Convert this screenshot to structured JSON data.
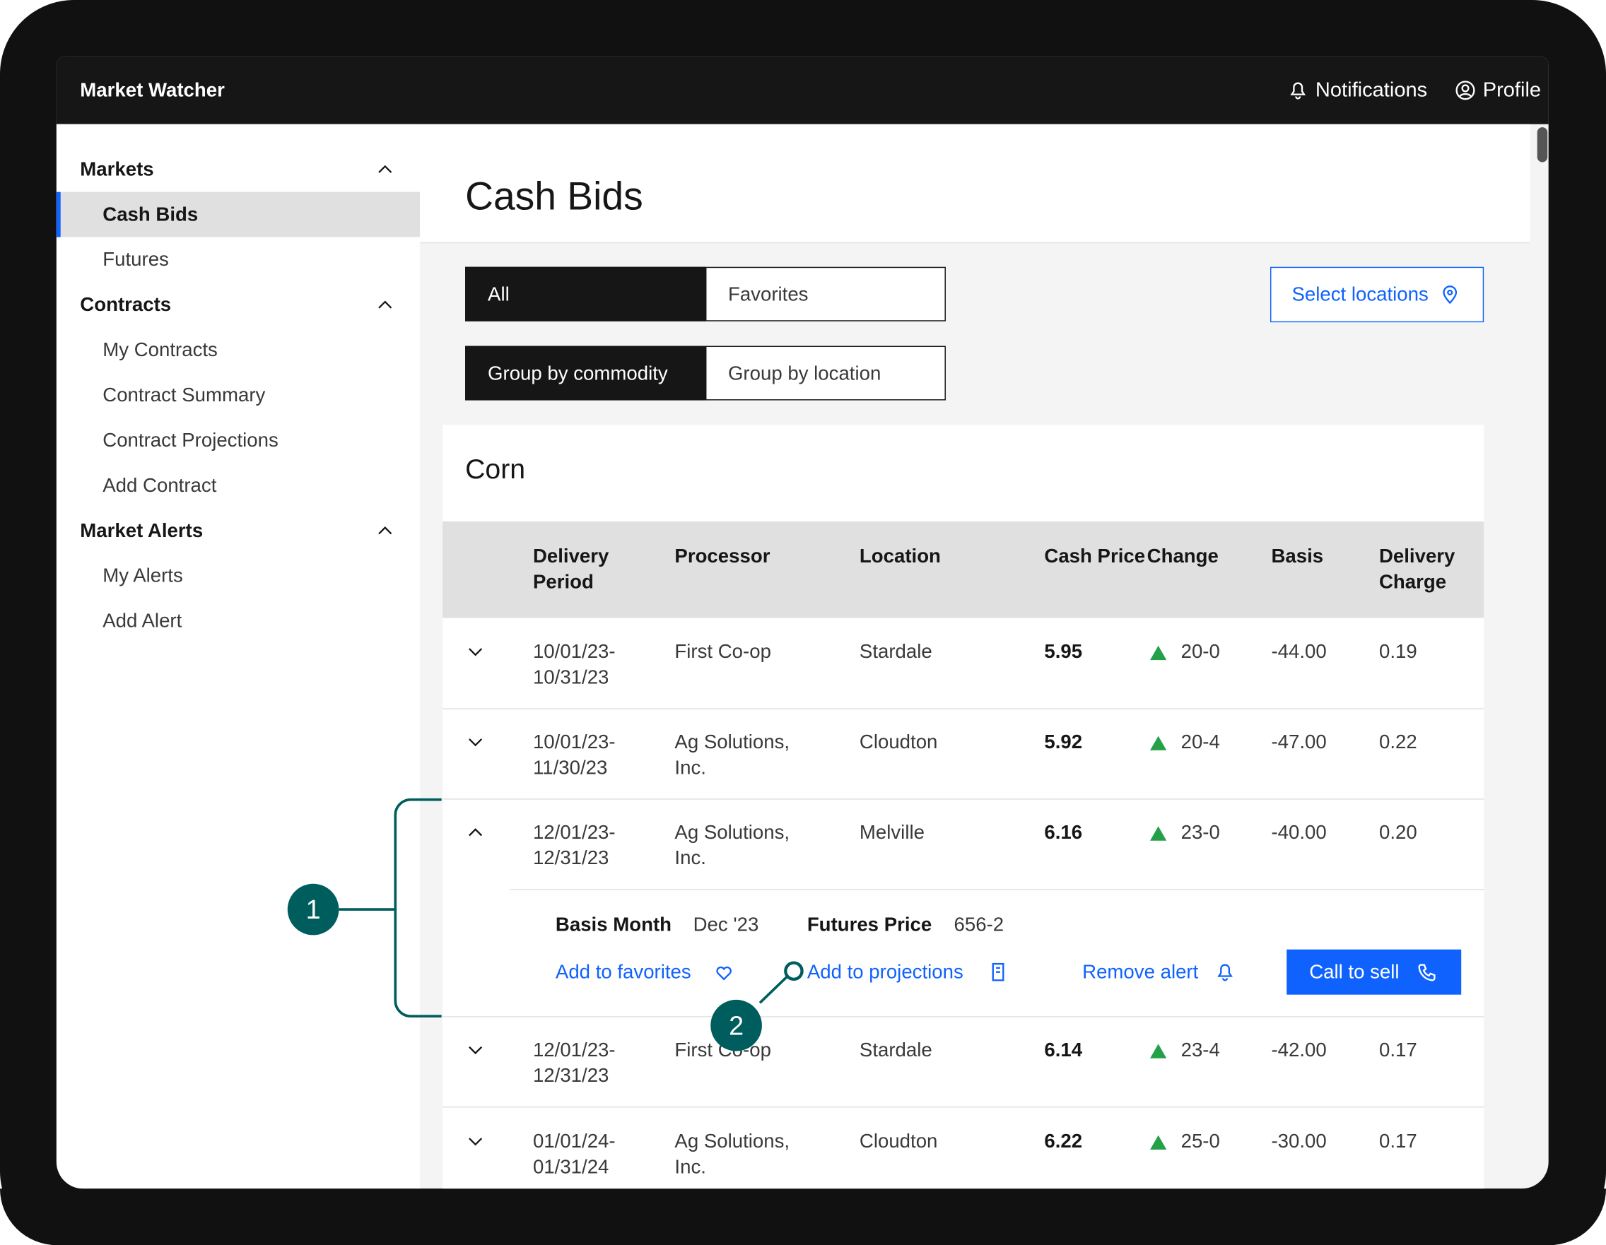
{
  "header": {
    "title": "Market Watcher",
    "notifications": "Notifications",
    "profile": "Profile"
  },
  "sidebar": [
    {
      "title": "Markets",
      "items": [
        "Cash Bids",
        "Futures"
      ]
    },
    {
      "title": "Contracts",
      "items": [
        "My Contracts",
        "Contract Summary",
        "Contract Projections",
        "Add Contract"
      ]
    },
    {
      "title": "Market Alerts",
      "items": [
        "My Alerts",
        "Add Alert"
      ]
    }
  ],
  "page": {
    "title": "Cash Bids",
    "tabs": [
      "All",
      "Favorites"
    ],
    "groups": [
      "Group by commodity",
      "Group by location"
    ],
    "select_button": "Select locations"
  },
  "card": {
    "title": "Corn",
    "columns": [
      "Delivery Period",
      "Processor",
      "Location",
      "Cash Price",
      "Change",
      "Basis",
      "Delivery Charge"
    ],
    "rows": [
      [
        "10/01/23-10/31/23",
        "First Co-op",
        "Stardale",
        "5.95",
        "20-0",
        "-44.00",
        "0.19"
      ],
      [
        "10/01/23-11/30/23",
        "Ag Solutions, Inc.",
        "Cloudton",
        "5.92",
        "20-4",
        "-47.00",
        "0.22"
      ],
      [
        "12/01/23-12/31/23",
        "Ag Solutions, Inc.",
        "Melville",
        "6.16",
        "23-0",
        "-40.00",
        "0.20"
      ],
      [
        "12/01/23-12/31/23",
        "First Co-op",
        "Stardale",
        "6.14",
        "23-4",
        "-42.00",
        "0.17"
      ],
      [
        "01/01/24-01/31/24",
        "Ag Solutions, Inc.",
        "Cloudton",
        "6.22",
        "25-0",
        "-30.00",
        "0.17"
      ]
    ],
    "detail": {
      "basis_month_label": "Basis Month",
      "basis_month": "Dec '23",
      "futures_label": "Futures Price",
      "futures": "656-2",
      "actions": [
        "Add to favorites",
        "Add to projections",
        "Remove alert"
      ],
      "call_button": "Call to sell"
    }
  },
  "callouts": [
    "1",
    "2"
  ]
}
